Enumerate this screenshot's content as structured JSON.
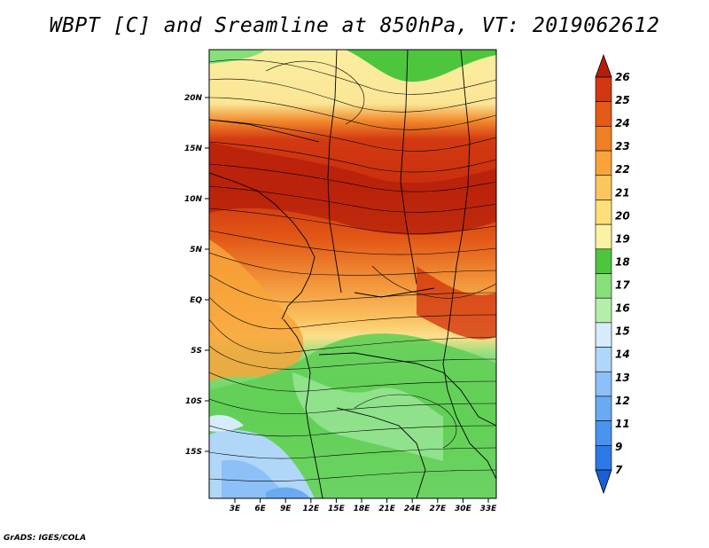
{
  "title": "WBPT [C] and Sreamline at 850hPa, VT: 2019062612",
  "credit": "GrADS: IGES/COLA",
  "map": {
    "lat_labels": [
      "20N",
      "15N",
      "10N",
      "5N",
      "EQ",
      "5S",
      "10S",
      "15S"
    ],
    "lon_labels": [
      "3E",
      "6E",
      "9E",
      "12E",
      "15E",
      "18E",
      "21E",
      "24E",
      "27E",
      "30E",
      "33E"
    ]
  },
  "colorbar": {
    "levels": [
      "7",
      "9",
      "11",
      "12",
      "13",
      "14",
      "15",
      "16",
      "17",
      "18",
      "19",
      "20",
      "21",
      "22",
      "23",
      "24",
      "25",
      "26"
    ],
    "colors": [
      "#1a5fd6",
      "#2c78e6",
      "#4893ef",
      "#6aaaf3",
      "#8cc0f6",
      "#b0d6f8",
      "#d6ecfb",
      "#b4efaa",
      "#86e07a",
      "#4dc63e",
      "#fbf3a4",
      "#fde07a",
      "#fbc65b",
      "#f8a43a",
      "#f07f23",
      "#e45a17",
      "#d3370f",
      "#b41e0b"
    ]
  }
}
